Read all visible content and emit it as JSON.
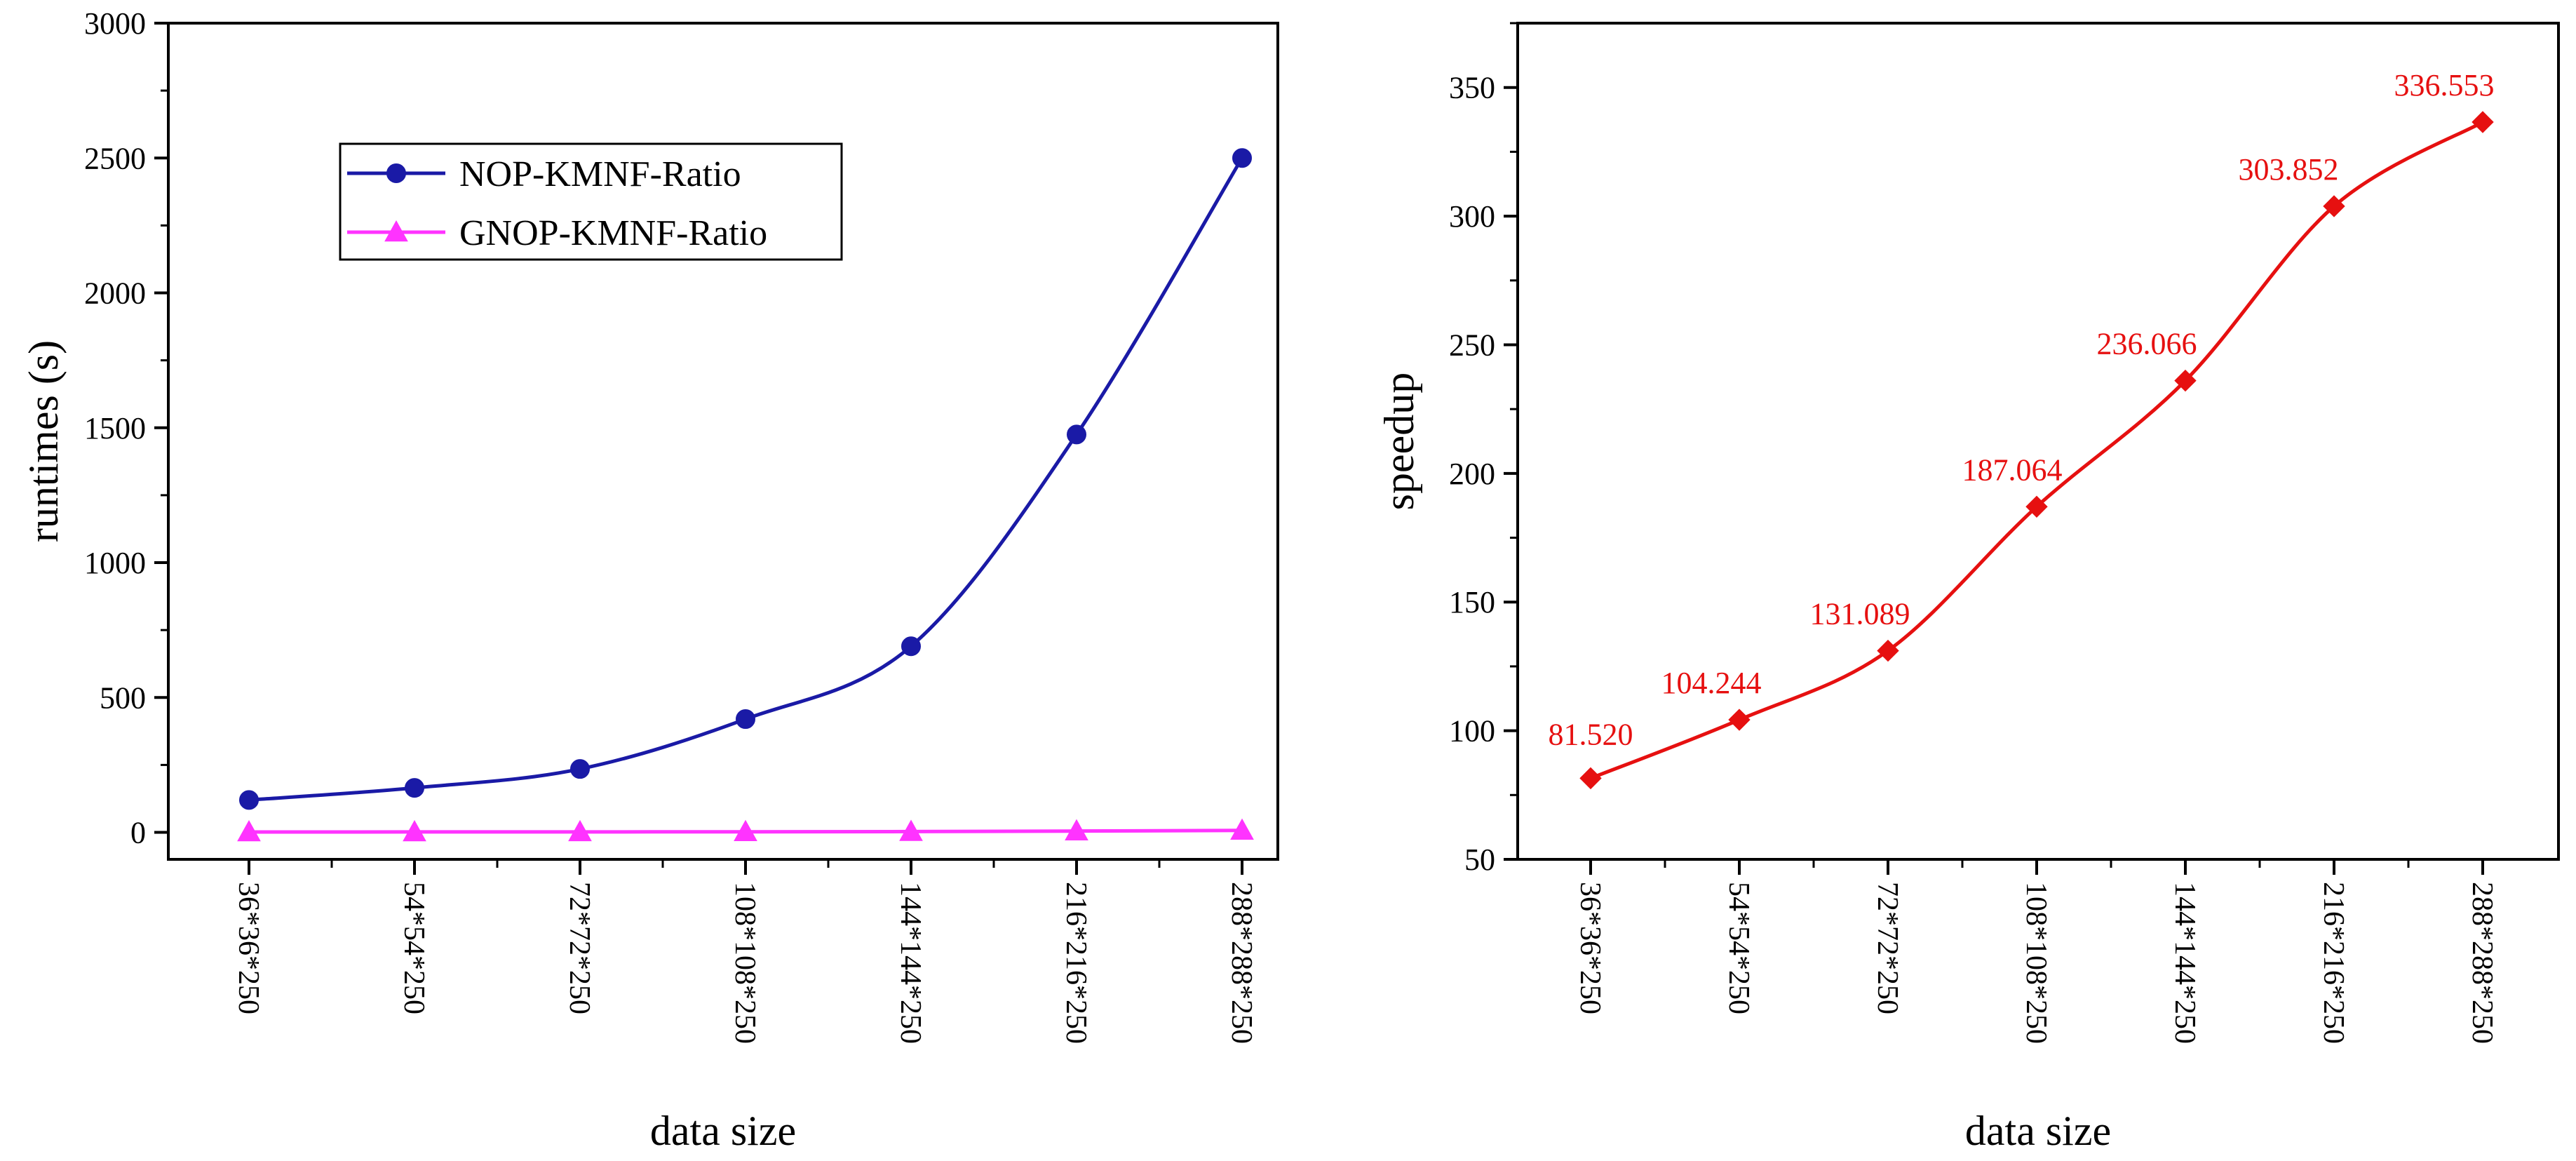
{
  "chart_data": [
    {
      "type": "line",
      "xlabel": "data size",
      "ylabel": "runtimes (s)",
      "categories": [
        "36*36*250",
        "54*54*250",
        "72*72*250",
        "108*108*250",
        "144*144*250",
        "216*216*250",
        "288*288*250"
      ],
      "ylim": [
        -100,
        3000
      ],
      "yticks": [
        0,
        500,
        1000,
        1500,
        2000,
        2500,
        3000
      ],
      "legend_position": "upper-left",
      "grid": false,
      "series": [
        {
          "name": "NOP-KMNF-Ratio",
          "marker": "circle",
          "color": "#1a1aa6",
          "values": [
            120,
            165,
            235,
            420,
            690,
            1475,
            2500
          ]
        },
        {
          "name": "GNOP-KMNF-Ratio",
          "marker": "triangle",
          "color": "#ff33ff",
          "values": [
            1.5,
            1.6,
            1.8,
            2.2,
            2.9,
            4.9,
            7.4
          ]
        }
      ]
    },
    {
      "type": "line",
      "xlabel": "data size",
      "ylabel": "speedup",
      "categories": [
        "36*36*250",
        "54*54*250",
        "72*72*250",
        "108*108*250",
        "144*144*250",
        "216*216*250",
        "288*288*250"
      ],
      "ylim": [
        50,
        375
      ],
      "yticks": [
        50,
        100,
        150,
        200,
        250,
        300,
        350
      ],
      "grid": false,
      "series": [
        {
          "name": "speedup",
          "marker": "diamond",
          "color": "#e61010",
          "values": [
            81.52,
            104.244,
            131.089,
            187.064,
            236.066,
            303.852,
            336.553
          ]
        }
      ],
      "data_labels": [
        "81.520",
        "104.244",
        "131.089",
        "187.064",
        "236.066",
        "303.852",
        "336.553"
      ]
    }
  ]
}
